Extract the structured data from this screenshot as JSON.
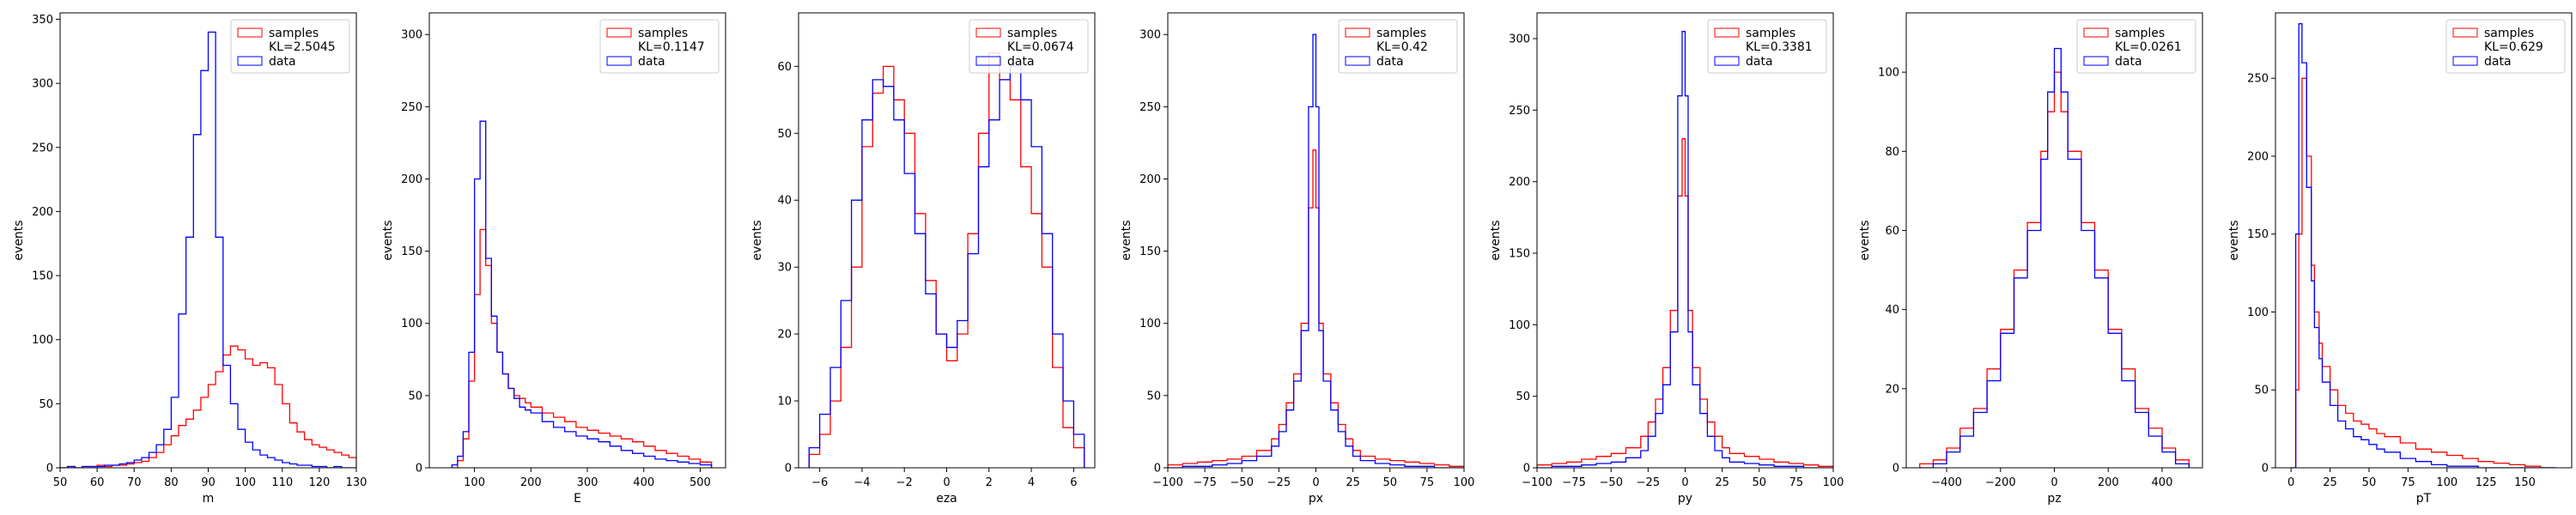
{
  "chart_data": [
    {
      "type": "step-histogram",
      "xlabel": "m",
      "ylabel": "events",
      "xlim": [
        50,
        130
      ],
      "ylim": [
        0,
        355
      ],
      "xticks": [
        50,
        60,
        70,
        80,
        90,
        100,
        110,
        120,
        130
      ],
      "yticks": [
        0,
        50,
        100,
        150,
        200,
        250,
        300,
        350
      ],
      "legend": [
        "samples",
        "KL=2.5045",
        "data"
      ],
      "series": [
        {
          "name": "samples",
          "color": "#ff0000",
          "x": [
            50,
            52,
            54,
            56,
            58,
            60,
            62,
            64,
            66,
            68,
            70,
            72,
            74,
            76,
            78,
            80,
            82,
            84,
            86,
            88,
            90,
            92,
            94,
            96,
            98,
            100,
            102,
            104,
            106,
            108,
            110,
            112,
            114,
            116,
            118,
            120,
            122,
            124,
            126,
            128,
            130
          ],
          "y": [
            0,
            1,
            0,
            1,
            1,
            2,
            1,
            2,
            2,
            3,
            4,
            5,
            8,
            12,
            18,
            25,
            33,
            38,
            45,
            55,
            65,
            75,
            88,
            95,
            92,
            85,
            80,
            82,
            78,
            65,
            50,
            35,
            28,
            22,
            18,
            16,
            14,
            12,
            10,
            8,
            6
          ]
        },
        {
          "name": "data",
          "color": "#0000ff",
          "x": [
            50,
            52,
            54,
            56,
            58,
            60,
            62,
            64,
            66,
            68,
            70,
            72,
            74,
            76,
            78,
            80,
            82,
            84,
            86,
            88,
            90,
            92,
            94,
            96,
            98,
            100,
            102,
            104,
            106,
            108,
            110,
            112,
            114,
            116,
            118,
            120,
            122,
            124,
            126,
            128,
            130
          ],
          "y": [
            0,
            1,
            0,
            1,
            1,
            1,
            2,
            2,
            3,
            4,
            6,
            8,
            12,
            18,
            30,
            55,
            120,
            180,
            260,
            310,
            340,
            180,
            80,
            50,
            30,
            20,
            14,
            10,
            8,
            6,
            4,
            3,
            2,
            2,
            1,
            1,
            0,
            1,
            0,
            0,
            0
          ]
        }
      ]
    },
    {
      "type": "step-histogram",
      "xlabel": "E",
      "ylabel": "events",
      "xlim": [
        20,
        545
      ],
      "ylim": [
        0,
        315
      ],
      "xticks": [
        100,
        200,
        300,
        400,
        500
      ],
      "yticks": [
        0,
        50,
        100,
        150,
        200,
        250,
        300
      ],
      "legend": [
        "samples",
        "KL=0.1147",
        "data"
      ],
      "series": [
        {
          "name": "samples",
          "color": "#ff0000",
          "x": [
            60,
            70,
            80,
            90,
            100,
            110,
            120,
            130,
            140,
            150,
            160,
            170,
            180,
            190,
            200,
            220,
            240,
            260,
            280,
            300,
            320,
            340,
            360,
            380,
            400,
            420,
            440,
            460,
            480,
            500,
            520
          ],
          "y": [
            0,
            5,
            20,
            60,
            120,
            165,
            140,
            100,
            80,
            65,
            55,
            50,
            48,
            45,
            42,
            38,
            35,
            32,
            28,
            26,
            24,
            22,
            20,
            18,
            15,
            12,
            10,
            8,
            6,
            4,
            2
          ]
        },
        {
          "name": "data",
          "color": "#0000ff",
          "x": [
            60,
            70,
            80,
            90,
            100,
            110,
            120,
            130,
            140,
            150,
            160,
            170,
            180,
            190,
            200,
            220,
            240,
            260,
            280,
            300,
            320,
            340,
            360,
            380,
            400,
            420,
            440,
            460,
            480,
            500,
            520
          ],
          "y": [
            2,
            8,
            25,
            80,
            200,
            240,
            145,
            105,
            80,
            65,
            55,
            48,
            42,
            40,
            38,
            32,
            28,
            25,
            22,
            20,
            18,
            15,
            12,
            10,
            8,
            6,
            5,
            4,
            3,
            2,
            1
          ]
        }
      ]
    },
    {
      "type": "step-histogram",
      "xlabel": "eza",
      "ylabel": "events",
      "xlim": [
        -7,
        7
      ],
      "ylim": [
        0,
        68
      ],
      "xticks": [
        -6,
        -4,
        -2,
        0,
        2,
        4,
        6
      ],
      "yticks": [
        0,
        10,
        20,
        30,
        40,
        50,
        60
      ],
      "legend": [
        "samples",
        "KL=0.0674",
        "data"
      ],
      "series": [
        {
          "name": "samples",
          "color": "#ff0000",
          "x": [
            -6.5,
            -6,
            -5.5,
            -5,
            -4.5,
            -4,
            -3.5,
            -3,
            -2.5,
            -2,
            -1.5,
            -1,
            -0.5,
            0,
            0.5,
            1,
            1.5,
            2,
            2.5,
            3,
            3.5,
            4,
            4.5,
            5,
            5.5,
            6,
            6.5
          ],
          "y": [
            2,
            5,
            10,
            18,
            30,
            48,
            56,
            60,
            55,
            50,
            38,
            28,
            20,
            16,
            20,
            35,
            50,
            62,
            58,
            55,
            45,
            38,
            30,
            15,
            6,
            3,
            1
          ]
        },
        {
          "name": "data",
          "color": "#0000ff",
          "x": [
            -6.5,
            -6,
            -5.5,
            -5,
            -4.5,
            -4,
            -3.5,
            -3,
            -2.5,
            -2,
            -1.5,
            -1,
            -0.5,
            0,
            0.5,
            1,
            1.5,
            2,
            2.5,
            3,
            3.5,
            4,
            4.5,
            5,
            5.5,
            6,
            6.5
          ],
          "y": [
            3,
            8,
            15,
            25,
            40,
            52,
            58,
            57,
            52,
            44,
            35,
            26,
            20,
            18,
            22,
            32,
            45,
            52,
            58,
            60,
            55,
            48,
            35,
            20,
            10,
            5,
            2
          ]
        }
      ]
    },
    {
      "type": "step-histogram",
      "xlabel": "px",
      "ylabel": "events",
      "xlim": [
        -100,
        100
      ],
      "ylim": [
        0,
        315
      ],
      "xticks": [
        -100,
        -75,
        -50,
        -25,
        0,
        25,
        50,
        75,
        100
      ],
      "yticks": [
        0,
        50,
        100,
        150,
        200,
        250,
        300
      ],
      "legend": [
        "samples",
        "KL=0.42",
        "data"
      ],
      "series": [
        {
          "name": "samples",
          "color": "#ff0000",
          "x": [
            -100,
            -90,
            -80,
            -70,
            -60,
            -50,
            -40,
            -30,
            -25,
            -20,
            -15,
            -10,
            -5,
            -2,
            0,
            2,
            5,
            10,
            15,
            20,
            25,
            30,
            40,
            50,
            60,
            70,
            80,
            90,
            100
          ],
          "y": [
            2,
            3,
            4,
            5,
            6,
            8,
            12,
            20,
            30,
            45,
            65,
            100,
            180,
            220,
            180,
            100,
            65,
            45,
            30,
            20,
            12,
            8,
            6,
            5,
            4,
            3,
            2,
            1,
            0
          ]
        },
        {
          "name": "data",
          "color": "#0000ff",
          "x": [
            -100,
            -90,
            -80,
            -70,
            -60,
            -50,
            -40,
            -30,
            -25,
            -20,
            -15,
            -10,
            -5,
            -2,
            0,
            2,
            5,
            10,
            15,
            20,
            25,
            30,
            40,
            50,
            60,
            70,
            80,
            90,
            100
          ],
          "y": [
            0,
            1,
            1,
            2,
            3,
            5,
            8,
            15,
            25,
            40,
            60,
            95,
            250,
            300,
            250,
            95,
            60,
            40,
            25,
            15,
            8,
            5,
            3,
            2,
            1,
            1,
            0,
            0,
            0
          ]
        }
      ]
    },
    {
      "type": "step-histogram",
      "xlabel": "py",
      "ylabel": "events",
      "xlim": [
        -100,
        100
      ],
      "ylim": [
        0,
        318
      ],
      "xticks": [
        -100,
        -75,
        -50,
        -25,
        0,
        25,
        50,
        75,
        100
      ],
      "yticks": [
        0,
        50,
        100,
        150,
        200,
        250,
        300
      ],
      "legend": [
        "samples",
        "KL=0.3381",
        "data"
      ],
      "series": [
        {
          "name": "samples",
          "color": "#ff0000",
          "x": [
            -100,
            -90,
            -80,
            -70,
            -60,
            -50,
            -40,
            -30,
            -25,
            -20,
            -15,
            -10,
            -5,
            -2,
            0,
            2,
            5,
            10,
            15,
            20,
            25,
            30,
            40,
            50,
            60,
            70,
            80,
            90,
            100
          ],
          "y": [
            2,
            3,
            4,
            6,
            8,
            10,
            14,
            22,
            32,
            48,
            70,
            110,
            190,
            230,
            190,
            110,
            70,
            48,
            32,
            22,
            14,
            10,
            8,
            6,
            4,
            3,
            2,
            1,
            0
          ]
        },
        {
          "name": "data",
          "color": "#0000ff",
          "x": [
            -100,
            -90,
            -80,
            -70,
            -60,
            -50,
            -40,
            -30,
            -25,
            -20,
            -15,
            -10,
            -5,
            -2,
            0,
            2,
            5,
            10,
            15,
            20,
            25,
            30,
            40,
            50,
            60,
            70,
            80,
            90,
            100
          ],
          "y": [
            0,
            1,
            1,
            2,
            3,
            4,
            7,
            12,
            22,
            38,
            58,
            95,
            260,
            305,
            260,
            95,
            58,
            38,
            22,
            12,
            7,
            4,
            3,
            2,
            1,
            1,
            0,
            0,
            0
          ]
        }
      ]
    },
    {
      "type": "step-histogram",
      "xlabel": "pz",
      "ylabel": "events",
      "xlim": [
        -550,
        550
      ],
      "ylim": [
        0,
        115
      ],
      "xticks": [
        -400,
        -200,
        0,
        200,
        400
      ],
      "yticks": [
        0,
        20,
        40,
        60,
        80,
        100
      ],
      "legend": [
        "samples",
        "KL=0.0261",
        "data"
      ],
      "series": [
        {
          "name": "samples",
          "color": "#ff0000",
          "x": [
            -500,
            -450,
            -400,
            -350,
            -300,
            -250,
            -200,
            -150,
            -100,
            -50,
            -25,
            0,
            25,
            50,
            100,
            150,
            200,
            250,
            300,
            350,
            400,
            450,
            500
          ],
          "y": [
            1,
            2,
            5,
            10,
            15,
            25,
            35,
            50,
            62,
            80,
            90,
            100,
            90,
            80,
            62,
            50,
            35,
            25,
            15,
            10,
            5,
            2,
            1
          ]
        },
        {
          "name": "data",
          "color": "#0000ff",
          "x": [
            -500,
            -450,
            -400,
            -350,
            -300,
            -250,
            -200,
            -150,
            -100,
            -50,
            -25,
            0,
            25,
            50,
            100,
            150,
            200,
            250,
            300,
            350,
            400,
            450,
            500
          ],
          "y": [
            0,
            1,
            4,
            8,
            14,
            22,
            34,
            48,
            60,
            78,
            95,
            106,
            95,
            78,
            60,
            48,
            34,
            22,
            14,
            8,
            4,
            1,
            0
          ]
        }
      ]
    },
    {
      "type": "step-histogram",
      "xlabel": "pT",
      "ylabel": "events",
      "xlim": [
        -10,
        180
      ],
      "ylim": [
        0,
        292
      ],
      "xticks": [
        0,
        25,
        50,
        75,
        100,
        125,
        150
      ],
      "yticks": [
        0,
        50,
        100,
        150,
        200,
        250
      ],
      "legend": [
        "samples",
        "KL=0.629",
        "data"
      ],
      "series": [
        {
          "name": "samples",
          "color": "#ff0000",
          "x": [
            0,
            3,
            5,
            7,
            10,
            13,
            15,
            18,
            20,
            25,
            30,
            35,
            40,
            45,
            50,
            55,
            60,
            70,
            80,
            90,
            100,
            110,
            120,
            130,
            140,
            150,
            160,
            170
          ],
          "y": [
            0,
            50,
            150,
            250,
            200,
            130,
            100,
            80,
            65,
            50,
            40,
            35,
            30,
            28,
            25,
            22,
            20,
            16,
            12,
            10,
            8,
            6,
            4,
            3,
            2,
            1,
            0,
            0
          ]
        },
        {
          "name": "data",
          "color": "#0000ff",
          "x": [
            0,
            3,
            5,
            7,
            10,
            13,
            15,
            18,
            20,
            25,
            30,
            35,
            40,
            45,
            50,
            55,
            60,
            70,
            80,
            90,
            100,
            110,
            120,
            130,
            140,
            150,
            160,
            170
          ],
          "y": [
            0,
            150,
            285,
            260,
            180,
            120,
            90,
            70,
            55,
            40,
            30,
            25,
            20,
            18,
            15,
            12,
            10,
            6,
            4,
            2,
            1,
            1,
            0,
            0,
            0,
            0,
            0,
            0
          ]
        }
      ]
    }
  ]
}
